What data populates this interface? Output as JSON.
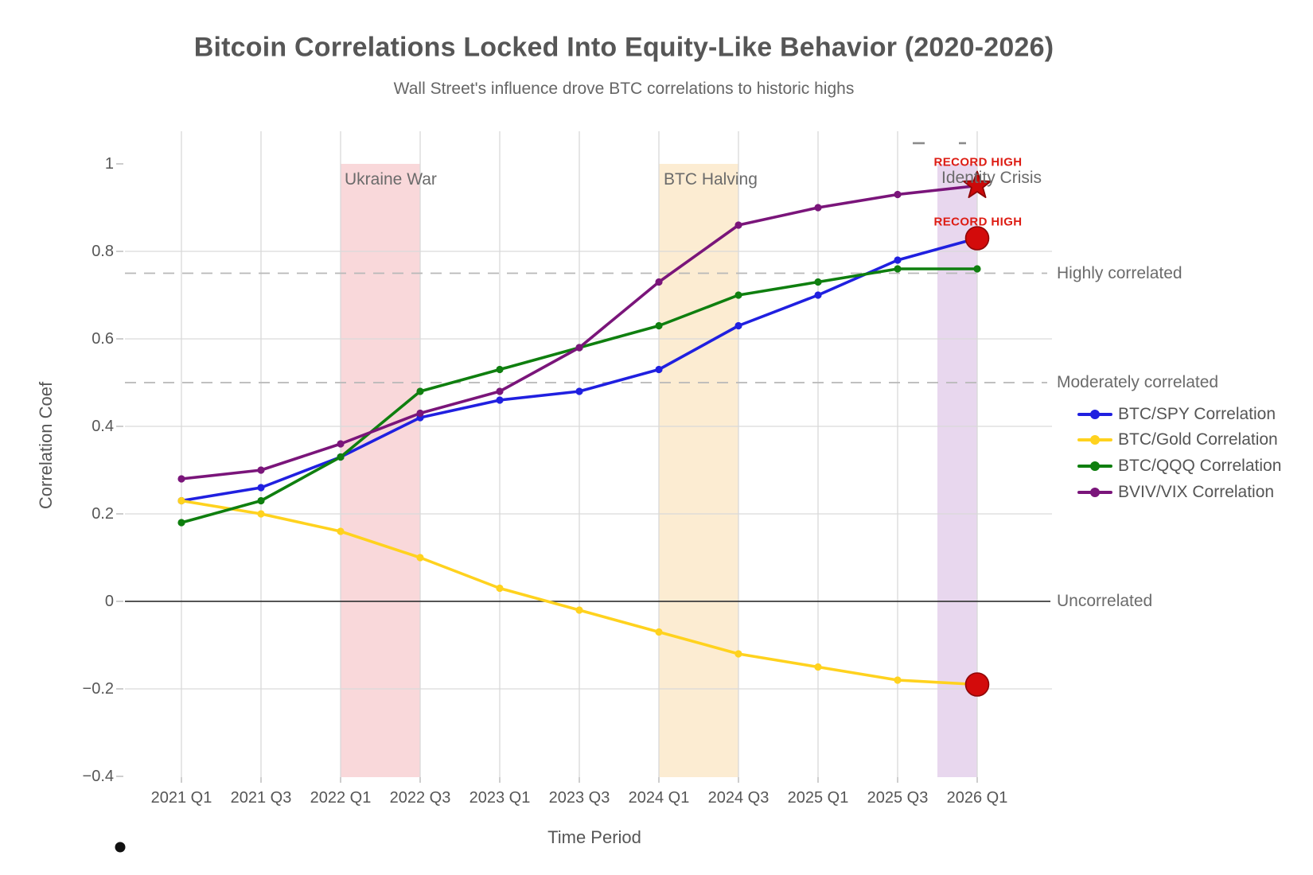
{
  "chart": {
    "title": "Bitcoin Correlations Locked Into Equity-Like Behavior (2020-2026)",
    "subtitle": "Wall Street's influence drove BTC correlations to historic highs",
    "xlabel": "Time Period",
    "ylabel": "Correlation Coef"
  },
  "chart_data": {
    "type": "line",
    "categories": [
      "2021 Q1",
      "2021 Q3",
      "2022 Q1",
      "2022 Q3",
      "2023 Q1",
      "2023 Q3",
      "2024 Q1",
      "2024 Q3",
      "2025 Q1",
      "2025 Q3",
      "2026 Q1"
    ],
    "series": [
      {
        "name": "BTC/SPY Correlation",
        "color": "#2020e0",
        "values": [
          0.23,
          0.26,
          0.33,
          0.42,
          0.46,
          0.48,
          0.53,
          0.63,
          0.7,
          0.78,
          0.83
        ],
        "end_marker": "red-circle"
      },
      {
        "name": "BTC/Gold Correlation",
        "color": "#ffd21e",
        "values": [
          0.23,
          0.2,
          0.16,
          0.1,
          0.03,
          -0.02,
          -0.07,
          -0.12,
          -0.15,
          -0.18,
          -0.19
        ],
        "end_marker": "red-circle"
      },
      {
        "name": "BTC/QQQ Correlation",
        "color": "#0f7f0f",
        "values": [
          0.18,
          0.23,
          0.33,
          0.48,
          0.53,
          0.58,
          0.63,
          0.7,
          0.73,
          0.76,
          0.76
        ],
        "end_marker": "none"
      },
      {
        "name": "BVIV/VIX Correlation",
        "color": "#7a157a",
        "values": [
          0.28,
          0.3,
          0.36,
          0.43,
          0.48,
          0.58,
          0.73,
          0.86,
          0.9,
          0.93,
          0.95
        ],
        "end_marker": "red-star"
      }
    ],
    "xlabel": "Time Period",
    "ylabel": "Correlation Coef",
    "ylim": [
      -0.4,
      1.07
    ],
    "yticks": [
      1,
      0.8,
      0.6,
      0.4,
      0.2,
      0,
      -0.2,
      -0.4
    ],
    "ytick_labels": [
      "1",
      "0.8",
      "0.6",
      "0.4",
      "0.2",
      "0",
      "−0.2",
      "−0.4"
    ],
    "grid": true,
    "legend_position": "right",
    "thresholds": [
      {
        "label": "Highly correlated",
        "value": 0.75,
        "style": "dashed"
      },
      {
        "label": "Moderately correlated",
        "value": 0.5,
        "style": "dashed"
      },
      {
        "label": "Uncorrelated",
        "value": 0,
        "style": "solid"
      }
    ],
    "bands": [
      {
        "label": "Ukraine War",
        "from": "2022 Q1",
        "to": "2022 Q3",
        "i0": 2,
        "i1": 3,
        "color": "#f9d8da"
      },
      {
        "label": "BTC Halving",
        "from": "2024 Q1",
        "to": "2024 Q3",
        "i0": 6,
        "i1": 7,
        "color": "#fcecd2"
      },
      {
        "label": "Identity Crisis",
        "from": "2025 Q4",
        "to": "2026 Q1",
        "i0": 9.5,
        "i1": 10,
        "color": "#e8d7ee"
      }
    ],
    "annotations": [
      {
        "text": "RECORD HIGH",
        "target": "BVIV/VIX Correlation"
      },
      {
        "text": "RECORD HIGH",
        "target": "BTC/SPY Correlation"
      }
    ],
    "marker_colors": {
      "record_fill": "#d30b0b",
      "record_stroke": "#8e0707"
    }
  }
}
